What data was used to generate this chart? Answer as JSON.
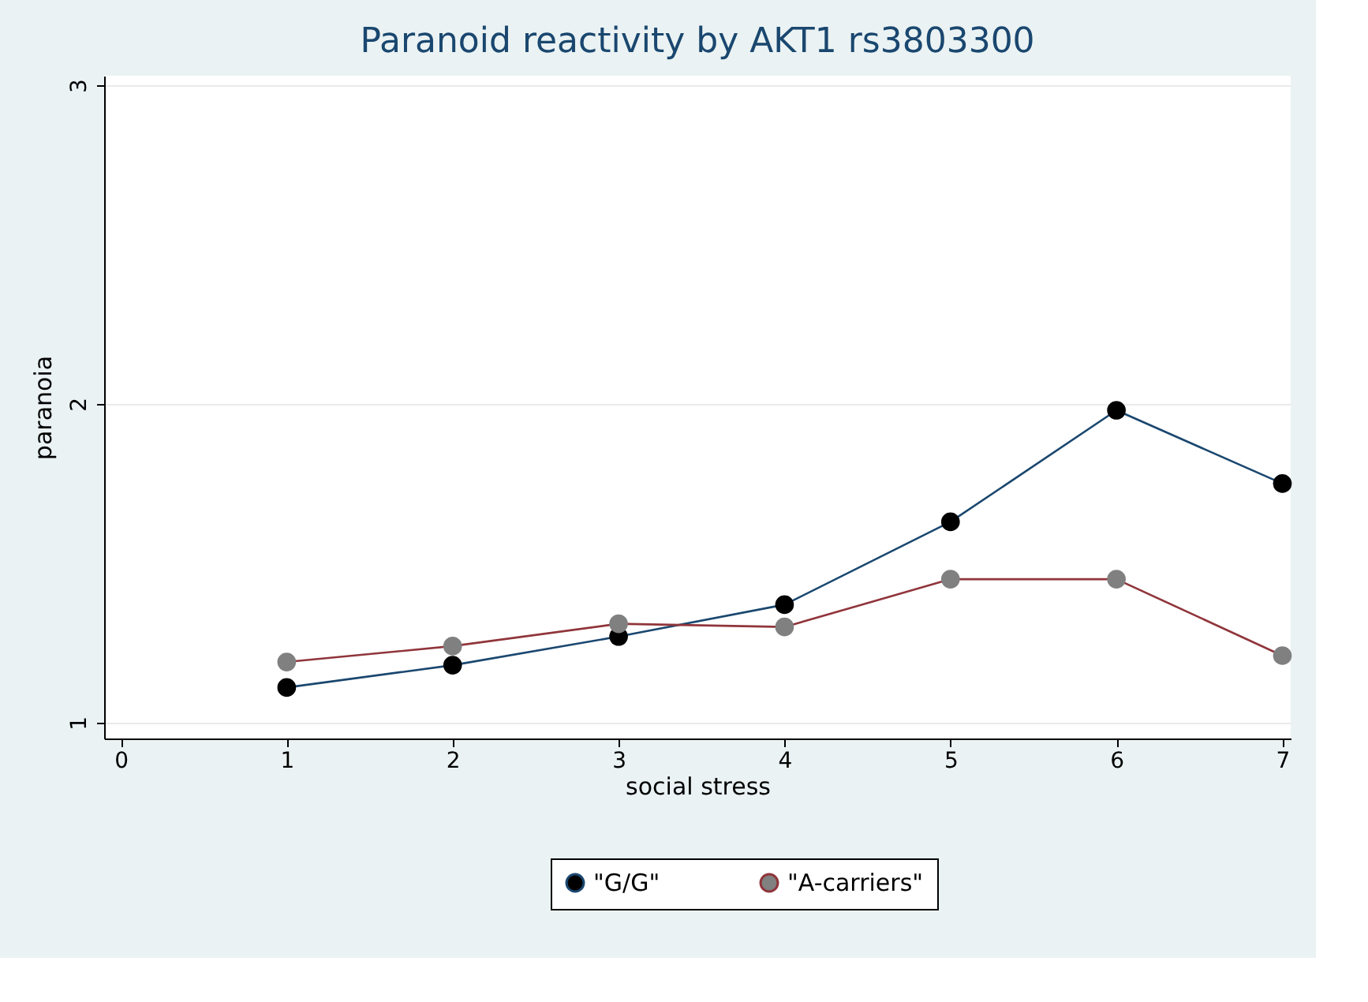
{
  "chart_data": {
    "type": "line",
    "title": "Paranoid reactivity by AKT1 rs3803300",
    "xlabel": "social stress",
    "ylabel": "paranoia",
    "x": [
      1,
      2,
      3,
      4,
      5,
      6,
      7
    ],
    "series": [
      {
        "name": "\"G/G\"",
        "color": "#1a476f",
        "values": [
          1.11,
          1.18,
          1.27,
          1.37,
          1.63,
          1.98,
          1.75
        ]
      },
      {
        "name": "\"A-carriers\"",
        "color": "#90353b",
        "values": [
          1.19,
          1.24,
          1.31,
          1.3,
          1.45,
          1.45,
          1.21
        ]
      }
    ],
    "xlim": [
      -0.1,
      7.05
    ],
    "xticks": [
      0,
      1,
      2,
      3,
      4,
      5,
      6,
      7
    ],
    "ylim": [
      0.95,
      3.03
    ],
    "yticks": [
      1,
      2,
      3
    ],
    "grid": "y",
    "legend": "bottom",
    "marker": "circle",
    "line_style": "solid"
  }
}
